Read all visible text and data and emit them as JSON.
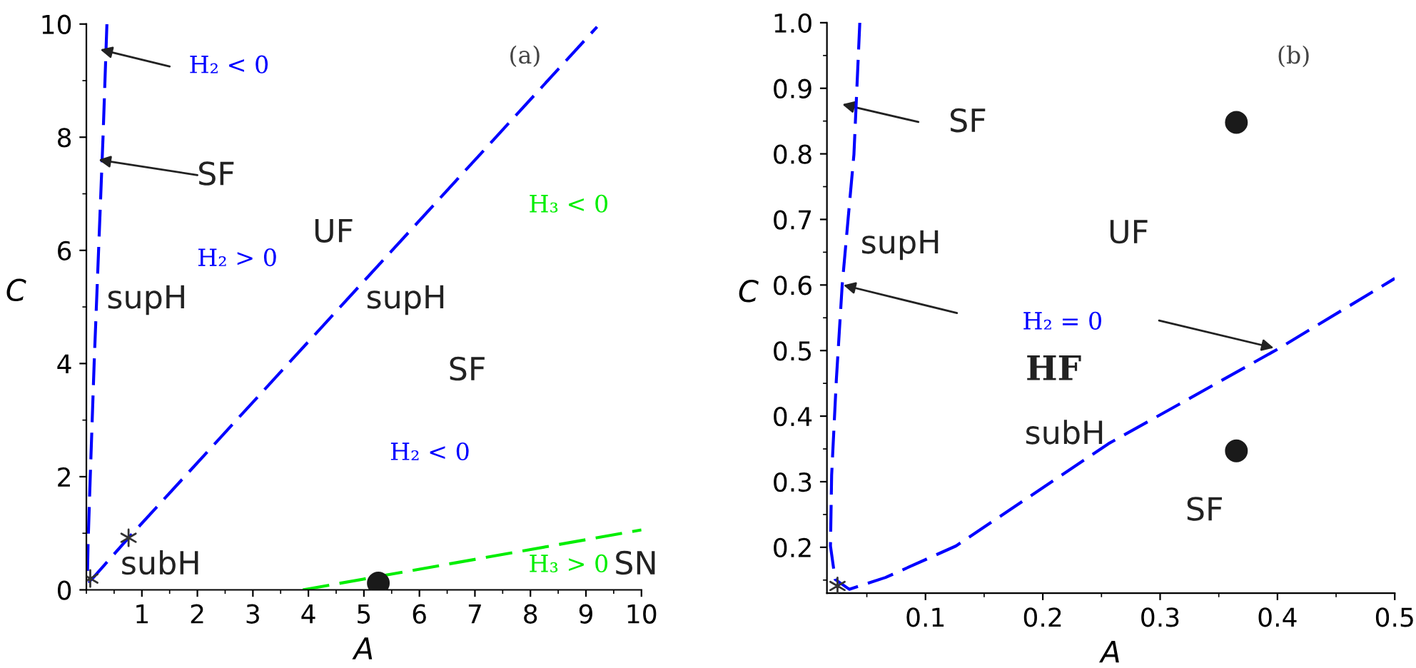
{
  "chart_data": [
    {
      "type": "line",
      "xlabel": "A",
      "ylabel": "C",
      "xlim": [
        0,
        10
      ],
      "ylim": [
        0,
        10
      ],
      "xticks": [
        1,
        2,
        3,
        4,
        5,
        6,
        7,
        8,
        9,
        10
      ],
      "yticks": [
        0,
        2,
        4,
        6,
        8,
        10
      ],
      "grid": false,
      "legend": false,
      "series": [
        {
          "color": "#0000ff",
          "line_style": "dashed",
          "marker": "none",
          "x": [
            0.37,
            0.3,
            0.22,
            0.14,
            0.07,
            0.03,
            0.02,
            0.05,
            0.11,
            0.76,
            9.2
          ],
          "values": [
            10,
            8,
            6,
            4,
            2,
            0.8,
            0.3,
            0.15,
            0.2,
            0.92,
            9.95
          ]
        },
        {
          "color": "#00ee00",
          "line_style": "dashed",
          "marker": "none",
          "x": [
            3.9,
            10
          ],
          "values": [
            0,
            1.06
          ]
        },
        {
          "type": "scatter",
          "color": "#333333",
          "marker": "cross",
          "x": [
            0.07,
            0.76
          ],
          "values": [
            0.2,
            0.92
          ]
        },
        {
          "type": "scatter",
          "color": "#1a1a1a",
          "marker": "circle",
          "x": [
            5.26
          ],
          "values": [
            0.12
          ]
        }
      ],
      "annotations": [
        "(a)",
        {
          "text": "H₂ < 0",
          "x": 0.25,
          "y": 9.55
        },
        {
          "text": "SF",
          "x": 0.22,
          "y": 7.6
        },
        "H₂ > 0",
        "UF",
        "supH",
        "supH",
        "SF",
        "H₂ < 0",
        "H₃ < 0",
        "H₃ > 0",
        "SN",
        "subH"
      ]
    },
    {
      "type": "line",
      "xlabel": "A",
      "ylabel": "C",
      "xlim": [
        0.016,
        0.5
      ],
      "ylim": [
        0.13,
        1.0
      ],
      "xticks": [
        0.1,
        0.2,
        0.3,
        0.4,
        0.5
      ],
      "yticks": [
        0.2,
        0.3,
        0.4,
        0.5,
        0.6,
        0.7,
        0.8,
        0.9,
        {
          "value": 1.0,
          "label": "1.0"
        }
      ],
      "grid": false,
      "legend": false,
      "series": [
        {
          "color": "#0000ff",
          "line_style": "dashed",
          "marker": "none",
          "x": [
            0.044,
            0.039,
            0.034,
            0.029,
            0.024,
            0.02,
            0.019,
            0.023,
            0.035,
            0.066,
            0.126,
            0.256,
            0.4,
            0.5
          ],
          "values": [
            1.0,
            0.799,
            0.7,
            0.6,
            0.455,
            0.31,
            0.202,
            0.151,
            0.136,
            0.154,
            0.202,
            0.358,
            0.502,
            0.61
          ]
        },
        {
          "type": "scatter",
          "color": "#333333",
          "marker": "cross",
          "x": [
            0.025
          ],
          "values": [
            0.141
          ]
        },
        {
          "type": "scatter",
          "color": "#1a1a1a",
          "marker": "circle",
          "x": [
            0.365,
            0.365
          ],
          "values": [
            0.848,
            0.347
          ]
        }
      ],
      "annotations": [
        "(b)",
        "SF",
        "supH",
        "UF",
        "H₂ = 0",
        "HF",
        "subH",
        "SF"
      ]
    }
  ]
}
